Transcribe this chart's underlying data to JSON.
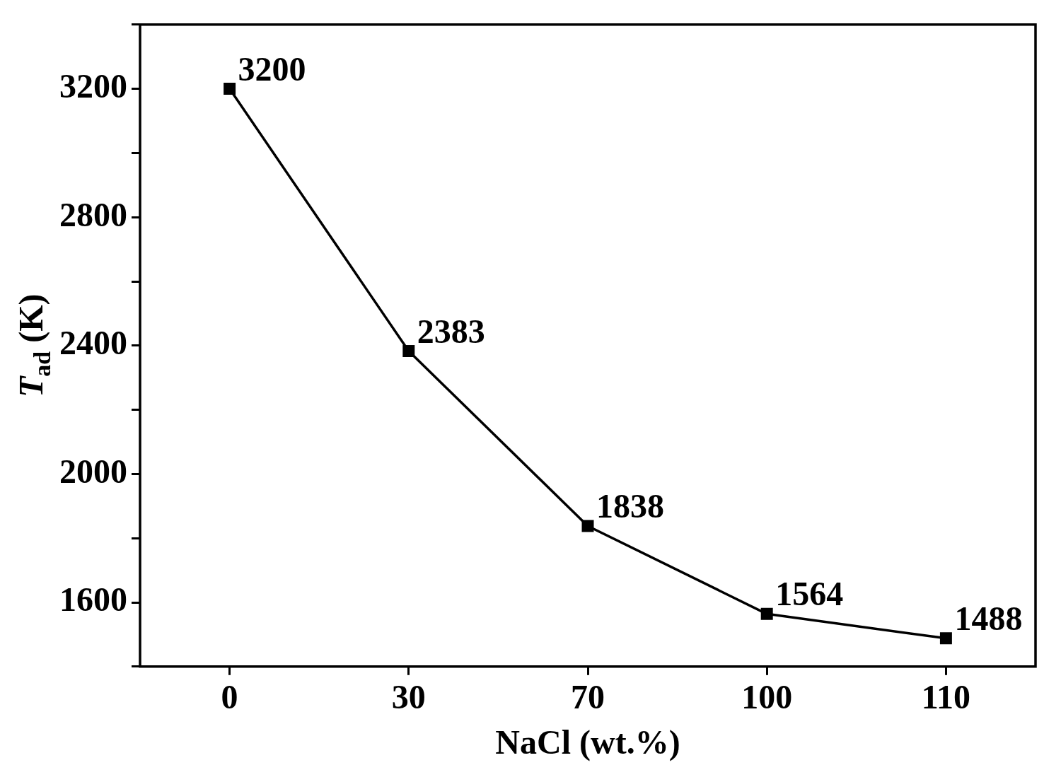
{
  "chart_data": {
    "type": "line",
    "xlabel": "NaCl (wt.%)",
    "ylabel": "T$_{ad}$ (K)",
    "categories": [
      "0",
      "30",
      "70",
      "100",
      "110"
    ],
    "series": [
      {
        "color": "#000000",
        "values": [
          3200,
          2383,
          1838,
          1564,
          1488
        ]
      }
    ],
    "ylim": [
      1400,
      3400
    ],
    "yticks": [
      {
        "value": 1400,
        "label": null
      },
      1600,
      {
        "value": 1800,
        "label": null
      },
      2000,
      {
        "value": 2200,
        "label": null
      },
      2400,
      {
        "value": 2600,
        "label": null
      },
      2800,
      {
        "value": 3000,
        "label": null
      },
      3200,
      {
        "value": 3400,
        "label": null
      }
    ],
    "grid": false,
    "legend": false,
    "marker": "square",
    "line_style": "solid",
    "data_labels": true
  }
}
